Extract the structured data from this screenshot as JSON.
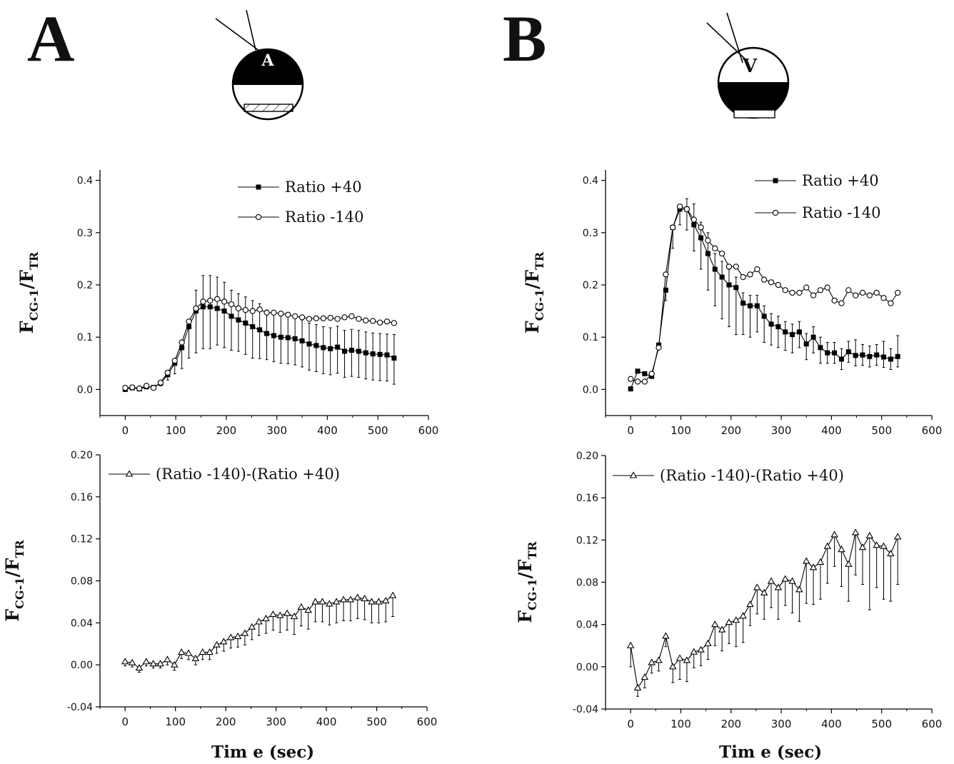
{
  "panels": [
    {
      "letter": "A",
      "cell_label": "A",
      "xaxis_title": "Tim e (sec)"
    },
    {
      "letter": "B",
      "cell_label": "V",
      "xaxis_title": "Tim e (sec)"
    }
  ],
  "ylabel": {
    "main": "F",
    "sub1": "CG-1",
    "sep": "/F",
    "sub2": "TR"
  },
  "chart_data": [
    {
      "id": "A-top",
      "type": "line",
      "xlim": [
        -50,
        600
      ],
      "ylim": [
        -0.05,
        0.42
      ],
      "xticks": [
        0,
        100,
        200,
        300,
        400,
        500,
        600
      ],
      "yticks": [
        0.0,
        0.1,
        0.2,
        0.3,
        0.4
      ],
      "ytick_labels": [
        "0.0",
        "0.1",
        "0.2",
        "0.3",
        "0.4"
      ],
      "x": [
        0,
        14,
        28,
        42,
        56,
        70,
        84,
        98,
        112,
        126,
        140,
        154,
        168,
        182,
        196,
        210,
        224,
        238,
        252,
        266,
        280,
        294,
        308,
        322,
        336,
        350,
        364,
        378,
        392,
        406,
        420,
        434,
        448,
        462,
        476,
        490,
        504,
        518,
        532
      ],
      "series": [
        {
          "name": "Ratio +40",
          "marker": "square",
          "values": [
            0.0,
            0.003,
            0.001,
            0.005,
            0.004,
            0.012,
            0.028,
            0.05,
            0.08,
            0.12,
            0.15,
            0.158,
            0.158,
            0.155,
            0.15,
            0.14,
            0.133,
            0.127,
            0.12,
            0.114,
            0.107,
            0.103,
            0.1,
            0.099,
            0.097,
            0.093,
            0.087,
            0.084,
            0.08,
            0.078,
            0.081,
            0.073,
            0.075,
            0.073,
            0.07,
            0.068,
            0.067,
            0.066,
            0.06
          ]
        },
        {
          "name": "Ratio -140",
          "marker": "circle",
          "values": [
            0.003,
            0.004,
            0.002,
            0.007,
            0.003,
            0.013,
            0.032,
            0.055,
            0.09,
            0.13,
            0.155,
            0.168,
            0.17,
            0.173,
            0.168,
            0.163,
            0.155,
            0.152,
            0.15,
            0.153,
            0.147,
            0.147,
            0.145,
            0.143,
            0.14,
            0.138,
            0.135,
            0.136,
            0.136,
            0.137,
            0.135,
            0.138,
            0.14,
            0.135,
            0.132,
            0.131,
            0.128,
            0.13,
            0.127
          ]
        }
      ],
      "errbar_series": 0,
      "errors": [
        0,
        0,
        0,
        0,
        0,
        0.005,
        0.01,
        0.02,
        0.04,
        0.06,
        0.08,
        0.08,
        0.08,
        0.07,
        0.07,
        0.065,
        0.06,
        0.06,
        0.06,
        0.055,
        0.05,
        0.05,
        0.05,
        0.05,
        0.05,
        0.05,
        0.05,
        0.05,
        0.05,
        0.05,
        0.05,
        0.05,
        0.05,
        0.05,
        0.05,
        0.05,
        0.05,
        0.05,
        0.05
      ],
      "errors_up": [
        0,
        0,
        0,
        0,
        0,
        0,
        0,
        0,
        0,
        0,
        0.04,
        0.06,
        0.06,
        0.06,
        0.055,
        0.05,
        0.05,
        0.05,
        0.05,
        0.05,
        0.045,
        0.045,
        0.045,
        0.04,
        0.04,
        0.04,
        0.04,
        0.04,
        0.04,
        0.04,
        0.04,
        0.04,
        0.04,
        0.04,
        0.04,
        0.04,
        0.04,
        0.04,
        0.045
      ]
    },
    {
      "id": "A-bottom",
      "type": "line",
      "xlim": [
        -50,
        600
      ],
      "ylim": [
        -0.04,
        0.2
      ],
      "xticks": [
        0,
        100,
        200,
        300,
        400,
        500,
        600
      ],
      "yticks": [
        -0.04,
        0.0,
        0.04,
        0.08,
        0.12,
        0.16,
        0.2
      ],
      "ytick_labels": [
        "-0.04",
        "0.00",
        "0.04",
        "0.08",
        "0.12",
        "0.16",
        "0.20"
      ],
      "x": [
        0,
        14,
        28,
        42,
        56,
        70,
        84,
        98,
        112,
        126,
        140,
        154,
        168,
        182,
        196,
        210,
        224,
        238,
        252,
        266,
        280,
        294,
        308,
        322,
        336,
        350,
        364,
        378,
        392,
        406,
        420,
        434,
        448,
        462,
        476,
        490,
        504,
        518,
        532
      ],
      "series": [
        {
          "name": "(Ratio -140)-(Ratio +40)",
          "marker": "triangle",
          "values": [
            0.003,
            0.002,
            -0.003,
            0.003,
            0.001,
            0.001,
            0.005,
            0.0,
            0.012,
            0.011,
            0.006,
            0.012,
            0.012,
            0.019,
            0.022,
            0.026,
            0.027,
            0.03,
            0.036,
            0.041,
            0.044,
            0.048,
            0.047,
            0.049,
            0.046,
            0.055,
            0.052,
            0.06,
            0.06,
            0.058,
            0.06,
            0.062,
            0.062,
            0.064,
            0.063,
            0.06,
            0.06,
            0.061,
            0.066
          ]
        }
      ],
      "errbar_series": 0,
      "errors": [
        0.004,
        0.004,
        0.004,
        0.004,
        0.004,
        0.004,
        0.005,
        0.005,
        0.006,
        0.006,
        0.006,
        0.007,
        0.007,
        0.008,
        0.009,
        0.01,
        0.01,
        0.011,
        0.012,
        0.013,
        0.014,
        0.015,
        0.016,
        0.016,
        0.017,
        0.018,
        0.018,
        0.019,
        0.019,
        0.02,
        0.02,
        0.02,
        0.02,
        0.02,
        0.02,
        0.02,
        0.02,
        0.02,
        0.02
      ]
    },
    {
      "id": "B-top",
      "type": "line",
      "xlim": [
        -50,
        600
      ],
      "ylim": [
        -0.05,
        0.42
      ],
      "xticks": [
        0,
        100,
        200,
        300,
        400,
        500,
        600
      ],
      "yticks": [
        0.0,
        0.1,
        0.2,
        0.3,
        0.4
      ],
      "ytick_labels": [
        "0.0",
        "0.1",
        "0.2",
        "0.3",
        "0.4"
      ],
      "x": [
        0,
        14,
        28,
        42,
        56,
        70,
        84,
        98,
        112,
        126,
        140,
        154,
        168,
        182,
        196,
        210,
        224,
        238,
        252,
        266,
        280,
        294,
        308,
        322,
        336,
        350,
        364,
        378,
        392,
        406,
        420,
        434,
        448,
        462,
        476,
        490,
        504,
        518,
        532
      ],
      "series": [
        {
          "name": "Ratio +40",
          "marker": "square",
          "values": [
            0.001,
            0.035,
            0.03,
            0.025,
            0.085,
            0.19,
            0.31,
            0.345,
            0.345,
            0.315,
            0.29,
            0.26,
            0.23,
            0.215,
            0.2,
            0.195,
            0.165,
            0.16,
            0.16,
            0.14,
            0.125,
            0.12,
            0.11,
            0.105,
            0.11,
            0.087,
            0.1,
            0.08,
            0.07,
            0.07,
            0.058,
            0.072,
            0.065,
            0.066,
            0.063,
            0.066,
            0.062,
            0.058,
            0.063
          ]
        },
        {
          "name": "Ratio -140",
          "marker": "circle",
          "values": [
            0.02,
            0.015,
            0.015,
            0.03,
            0.08,
            0.22,
            0.31,
            0.35,
            0.345,
            0.325,
            0.31,
            0.285,
            0.27,
            0.26,
            0.235,
            0.235,
            0.215,
            0.22,
            0.23,
            0.21,
            0.205,
            0.2,
            0.19,
            0.185,
            0.185,
            0.195,
            0.18,
            0.19,
            0.195,
            0.17,
            0.165,
            0.19,
            0.18,
            0.185,
            0.18,
            0.185,
            0.175,
            0.165,
            0.185
          ]
        }
      ],
      "errbar_series": 0,
      "errors": [
        0,
        0,
        0,
        0,
        0,
        0.02,
        0.04,
        0.03,
        0.04,
        0.05,
        0.06,
        0.07,
        0.07,
        0.08,
        0.08,
        0.09,
        0.06,
        0.06,
        0.05,
        0.05,
        0.04,
        0.04,
        0.035,
        0.035,
        0.03,
        0.03,
        0.03,
        0.03,
        0.02,
        0.02,
        0.02,
        0.02,
        0.02,
        0.02,
        0.02,
        0.02,
        0.02,
        0.02,
        0.02
      ],
      "errors_up": [
        0,
        0,
        0,
        0,
        0,
        0,
        0,
        0,
        0.02,
        0.04,
        0.03,
        0.04,
        0.03,
        0.03,
        0.03,
        0.02,
        0.02,
        0.02,
        0.02,
        0.02,
        0.02,
        0.02,
        0.02,
        0.02,
        0.02,
        0.02,
        0.02,
        0.02,
        0.02,
        0.02,
        0.02,
        0.02,
        0.03,
        0.02,
        0.02,
        0.02,
        0.03,
        0.02,
        0.04
      ]
    },
    {
      "id": "B-bottom",
      "type": "line",
      "xlim": [
        -50,
        600
      ],
      "ylim": [
        -0.04,
        0.2
      ],
      "xticks": [
        0,
        100,
        200,
        300,
        400,
        500,
        600
      ],
      "yticks": [
        -0.04,
        0.0,
        0.04,
        0.08,
        0.12,
        0.16,
        0.2
      ],
      "ytick_labels": [
        "-0.04",
        "0.00",
        "0.04",
        "0.08",
        "0.12",
        "0.16",
        "0.20"
      ],
      "x": [
        0,
        14,
        28,
        42,
        56,
        70,
        84,
        98,
        112,
        126,
        140,
        154,
        168,
        182,
        196,
        210,
        224,
        238,
        252,
        266,
        280,
        294,
        308,
        322,
        336,
        350,
        364,
        378,
        392,
        406,
        420,
        434,
        448,
        462,
        476,
        490,
        504,
        518,
        532
      ],
      "series": [
        {
          "name": "(Ratio -140)-(Ratio +40)",
          "marker": "triangle",
          "values": [
            0.02,
            -0.02,
            -0.01,
            0.004,
            0.006,
            0.029,
            0.0,
            0.008,
            0.006,
            0.014,
            0.016,
            0.022,
            0.04,
            0.035,
            0.042,
            0.044,
            0.048,
            0.059,
            0.075,
            0.07,
            0.081,
            0.075,
            0.083,
            0.081,
            0.073,
            0.1,
            0.094,
            0.099,
            0.114,
            0.125,
            0.111,
            0.097,
            0.127,
            0.113,
            0.124,
            0.115,
            0.114,
            0.107,
            0.123
          ]
        }
      ],
      "errbar_series": 0,
      "errors": [
        0.02,
        0.008,
        0.01,
        0.01,
        0.01,
        0.01,
        0.015,
        0.02,
        0.02,
        0.015,
        0.015,
        0.015,
        0.02,
        0.02,
        0.02,
        0.025,
        0.025,
        0.02,
        0.025,
        0.025,
        0.025,
        0.03,
        0.025,
        0.03,
        0.03,
        0.04,
        0.035,
        0.035,
        0.035,
        0.03,
        0.035,
        0.035,
        0.04,
        0.035,
        0.07,
        0.04,
        0.05,
        0.045,
        0.045
      ]
    }
  ]
}
